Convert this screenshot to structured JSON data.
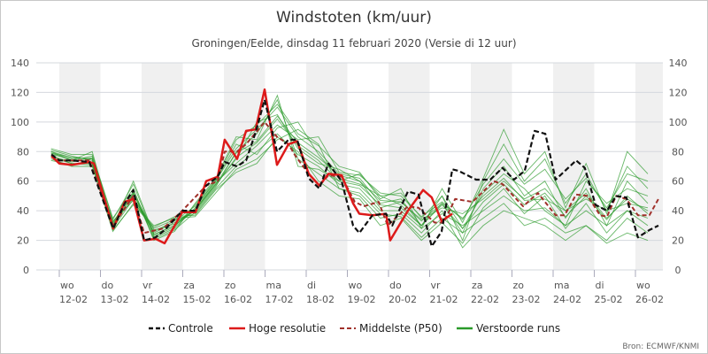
{
  "chart_data": {
    "type": "line",
    "title": "Windstoten (km/uur)",
    "subtitle": "Groningen/Eelde, dinsdag 11 februari 2020 (Versie di 12 uur)",
    "source": "Bron: ECMWF/KNMI",
    "xlabel": "",
    "ylabel": "",
    "ylim": [
      0,
      140
    ],
    "yticks": [
      0,
      20,
      40,
      60,
      80,
      100,
      120,
      140
    ],
    "x_unit": "days since 12-02 00h",
    "xlim": [
      -0.25,
      14.65
    ],
    "days": [
      {
        "day": "wo",
        "date": "12-02"
      },
      {
        "day": "do",
        "date": "13-02"
      },
      {
        "day": "vr",
        "date": "14-02"
      },
      {
        "day": "za",
        "date": "15-02"
      },
      {
        "day": "zo",
        "date": "16-02"
      },
      {
        "day": "ma",
        "date": "17-02"
      },
      {
        "day": "di",
        "date": "18-02"
      },
      {
        "day": "wo",
        "date": "19-02"
      },
      {
        "day": "do",
        "date": "20-02"
      },
      {
        "day": "vr",
        "date": "21-02"
      },
      {
        "day": "za",
        "date": "22-02"
      },
      {
        "day": "zo",
        "date": "23-02"
      },
      {
        "day": "ma",
        "date": "24-02"
      },
      {
        "day": "di",
        "date": "25-02"
      },
      {
        "day": "wo",
        "date": "26-02"
      }
    ],
    "grid": true,
    "legend_position": "bottom",
    "colors": {
      "control": "#111111",
      "hires": "#dd1a1a",
      "p50": "#a0302a",
      "members": "#2a9a2a",
      "band": "#f0f0f0",
      "gridline": "#d5d8de"
    },
    "legend": [
      "Controle",
      "Hoge resolutie",
      "Middelste (P50)",
      "Verstoorde runs"
    ],
    "series": [
      {
        "name": "Controle",
        "points": [
          [
            -0.19,
            78
          ],
          [
            0,
            74
          ],
          [
            0.3,
            74
          ],
          [
            0.73,
            73
          ],
          [
            1.31,
            28
          ],
          [
            1.59,
            45
          ],
          [
            1.8,
            54
          ],
          [
            2.06,
            20
          ],
          [
            2.34,
            22
          ],
          [
            2.56,
            27
          ],
          [
            2.99,
            40
          ],
          [
            3.31,
            40
          ],
          [
            3.57,
            57
          ],
          [
            3.85,
            63
          ],
          [
            4.02,
            73
          ],
          [
            4.32,
            70
          ],
          [
            4.54,
            74
          ],
          [
            4.77,
            93
          ],
          [
            4.99,
            115
          ],
          [
            5.29,
            80
          ],
          [
            5.57,
            88
          ],
          [
            5.78,
            88
          ],
          [
            6.06,
            62
          ],
          [
            6.32,
            55
          ],
          [
            6.54,
            72
          ],
          [
            6.86,
            60
          ],
          [
            7.14,
            30
          ],
          [
            7.29,
            25
          ],
          [
            7.61,
            37
          ],
          [
            7.94,
            38
          ],
          [
            8.09,
            30
          ],
          [
            8.47,
            53
          ],
          [
            8.73,
            51
          ],
          [
            9.05,
            16
          ],
          [
            9.29,
            26
          ],
          [
            9.55,
            68
          ],
          [
            9.7,
            67
          ],
          [
            10.13,
            61
          ],
          [
            10.47,
            61
          ],
          [
            10.77,
            69
          ],
          [
            11.05,
            61
          ],
          [
            11.31,
            67
          ],
          [
            11.55,
            94
          ],
          [
            11.81,
            92
          ],
          [
            12.06,
            61
          ],
          [
            12.56,
            74
          ],
          [
            12.77,
            69
          ],
          [
            13.03,
            44
          ],
          [
            13.31,
            40
          ],
          [
            13.53,
            50
          ],
          [
            13.78,
            49
          ],
          [
            14.06,
            22
          ],
          [
            14.34,
            27
          ],
          [
            14.56,
            30
          ]
        ]
      },
      {
        "name": "Hoge resolutie",
        "points": [
          [
            -0.19,
            77
          ],
          [
            0,
            72
          ],
          [
            0.3,
            71
          ],
          [
            0.73,
            73
          ],
          [
            0.84,
            72
          ],
          [
            1.31,
            28
          ],
          [
            1.59,
            46
          ],
          [
            1.8,
            48
          ],
          [
            2.06,
            20
          ],
          [
            2.34,
            21
          ],
          [
            2.56,
            18
          ],
          [
            2.99,
            39
          ],
          [
            3.31,
            39
          ],
          [
            3.57,
            60
          ],
          [
            3.85,
            63
          ],
          [
            4.02,
            88
          ],
          [
            4.32,
            75
          ],
          [
            4.54,
            94
          ],
          [
            4.77,
            95
          ],
          [
            4.99,
            122
          ],
          [
            5.29,
            71
          ],
          [
            5.57,
            85
          ],
          [
            5.78,
            87
          ],
          [
            6.06,
            65
          ],
          [
            6.32,
            57
          ],
          [
            6.54,
            65
          ],
          [
            6.86,
            64
          ],
          [
            7.14,
            45
          ],
          [
            7.29,
            38
          ],
          [
            7.61,
            37
          ],
          [
            7.94,
            38
          ],
          [
            8.04,
            20
          ],
          [
            8.47,
            40
          ],
          [
            8.84,
            54
          ],
          [
            9.05,
            49
          ],
          [
            9.29,
            33
          ],
          [
            9.55,
            38
          ]
        ]
      },
      {
        "name": "Middelste (P50)",
        "points": [
          [
            -0.19,
            78
          ],
          [
            0,
            74
          ],
          [
            0.73,
            74
          ],
          [
            1.31,
            30
          ],
          [
            1.8,
            50
          ],
          [
            2.06,
            25
          ],
          [
            2.52,
            28
          ],
          [
            2.99,
            40
          ],
          [
            3.57,
            57
          ],
          [
            3.85,
            60
          ],
          [
            4.02,
            80
          ],
          [
            4.32,
            80
          ],
          [
            4.54,
            85
          ],
          [
            4.99,
            100
          ],
          [
            5.29,
            90
          ],
          [
            5.57,
            85
          ],
          [
            5.74,
            77
          ],
          [
            6.06,
            65
          ],
          [
            6.32,
            57
          ],
          [
            6.54,
            64
          ],
          [
            6.86,
            63
          ],
          [
            7.18,
            46
          ],
          [
            7.4,
            43
          ],
          [
            7.76,
            46
          ],
          [
            7.98,
            30
          ],
          [
            8.47,
            43
          ],
          [
            8.73,
            42
          ],
          [
            9.12,
            32
          ],
          [
            9.34,
            32
          ],
          [
            9.62,
            48
          ],
          [
            10.04,
            46
          ],
          [
            10.56,
            60
          ],
          [
            10.77,
            58
          ],
          [
            11.27,
            43
          ],
          [
            11.63,
            52
          ],
          [
            12.06,
            37
          ],
          [
            12.28,
            37
          ],
          [
            12.56,
            51
          ],
          [
            12.84,
            50
          ],
          [
            13.14,
            37
          ],
          [
            13.31,
            36
          ],
          [
            13.53,
            50
          ],
          [
            13.78,
            48
          ],
          [
            14.06,
            37
          ],
          [
            14.34,
            37
          ],
          [
            14.56,
            48
          ]
        ]
      }
    ],
    "members_t": [
      -0.2,
      0.3,
      0.8,
      1.3,
      1.8,
      2.3,
      2.8,
      3.3,
      3.8,
      4.3,
      4.8,
      5.3,
      5.8,
      6.3,
      6.8,
      7.3,
      7.8,
      8.3,
      8.8,
      9.3,
      9.8,
      10.3,
      10.8,
      11.3,
      11.8,
      12.3,
      12.8,
      13.3,
      13.8,
      14.3
    ],
    "members": [
      [
        80,
        76,
        75,
        32,
        52,
        22,
        28,
        42,
        60,
        82,
        95,
        110,
        90,
        80,
        65,
        62,
        45,
        48,
        30,
        45,
        25,
        55,
        70,
        50,
        60,
        35,
        55,
        30,
        60,
        45
      ],
      [
        76,
        72,
        72,
        28,
        48,
        28,
        34,
        38,
        55,
        70,
        80,
        92,
        78,
        70,
        58,
        55,
        40,
        40,
        28,
        38,
        30,
        40,
        50,
        40,
        42,
        30,
        40,
        30,
        40,
        30
      ],
      [
        82,
        78,
        78,
        35,
        55,
        20,
        26,
        45,
        62,
        90,
        88,
        118,
        70,
        68,
        60,
        65,
        50,
        52,
        35,
        50,
        20,
        60,
        85,
        60,
        75,
        45,
        65,
        40,
        70,
        55
      ],
      [
        75,
        70,
        70,
        26,
        45,
        30,
        35,
        36,
        52,
        68,
        75,
        88,
        95,
        85,
        55,
        52,
        38,
        36,
        22,
        35,
        25,
        35,
        45,
        30,
        35,
        25,
        30,
        20,
        35,
        25
      ],
      [
        79,
        74,
        80,
        30,
        60,
        24,
        30,
        40,
        58,
        75,
        100,
        105,
        82,
        72,
        68,
        60,
        42,
        46,
        34,
        42,
        38,
        48,
        60,
        48,
        55,
        40,
        52,
        35,
        48,
        40
      ],
      [
        78,
        75,
        72,
        33,
        47,
        26,
        33,
        43,
        60,
        85,
        78,
        96,
        100,
        78,
        62,
        58,
        50,
        44,
        30,
        50,
        28,
        52,
        65,
        55,
        40,
        30,
        60,
        45,
        55,
        50
      ],
      [
        77,
        73,
        76,
        29,
        52,
        21,
        27,
        39,
        56,
        80,
        92,
        115,
        75,
        65,
        55,
        50,
        35,
        38,
        25,
        40,
        15,
        30,
        40,
        35,
        30,
        20,
        30,
        18,
        25,
        20
      ],
      [
        81,
        77,
        74,
        31,
        51,
        27,
        31,
        41,
        59,
        72,
        84,
        98,
        88,
        90,
        66,
        64,
        52,
        50,
        36,
        46,
        34,
        58,
        75,
        58,
        68,
        48,
        62,
        42,
        65,
        60
      ],
      [
        74,
        71,
        73,
        27,
        44,
        29,
        36,
        37,
        54,
        66,
        72,
        90,
        80,
        60,
        50,
        48,
        30,
        35,
        20,
        32,
        18,
        42,
        55,
        38,
        50,
        28,
        45,
        25,
        40,
        35
      ],
      [
        80,
        74,
        77,
        34,
        58,
        23,
        29,
        44,
        61,
        88,
        98,
        112,
        92,
        84,
        70,
        66,
        48,
        55,
        28,
        55,
        32,
        62,
        95,
        65,
        80,
        42,
        72,
        38,
        80,
        65
      ],
      [
        77,
        72,
        71,
        30,
        49,
        25,
        32,
        40,
        57,
        76,
        86,
        102,
        84,
        74,
        60,
        57,
        44,
        42,
        30,
        44,
        28,
        46,
        58,
        44,
        52,
        36,
        50,
        34,
        50,
        38
      ],
      [
        79,
        76,
        75,
        32,
        53,
        24,
        30,
        41,
        58,
        79,
        87,
        104,
        86,
        76,
        64,
        60,
        47,
        46,
        33,
        45,
        35,
        50,
        62,
        47,
        48,
        40,
        48,
        40,
        45,
        42
      ]
    ]
  }
}
